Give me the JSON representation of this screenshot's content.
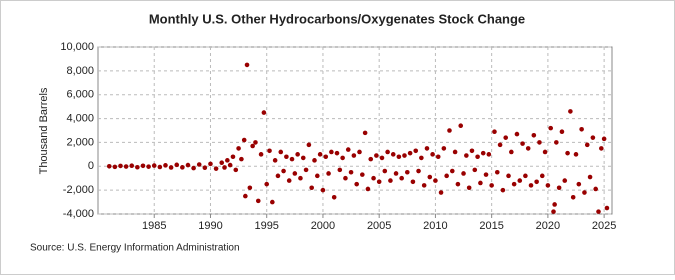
{
  "chart_data": {
    "type": "scatter",
    "title": "Monthly U.S. Other Hydrocarbons/Oxygenates Stock Change",
    "y_label": "Thousand Barrels",
    "source": "Source: U.S. Energy Information Administration",
    "color": "#990000",
    "grid": true,
    "xlim": [
      1980,
      2025.7
    ],
    "xticks": [
      1985,
      1990,
      1995,
      2000,
      2005,
      2010,
      2015,
      2020,
      2025
    ],
    "ylim": [
      -4000,
      10000
    ],
    "yticks": [
      {
        "value": -4000,
        "label": "-4,000"
      },
      {
        "value": -2000,
        "label": "-2,000"
      },
      0,
      {
        "value": 2000,
        "label": "2,000"
      },
      {
        "value": 4000,
        "label": "4,000"
      },
      {
        "value": 6000,
        "label": "6,000"
      },
      {
        "value": 8000,
        "label": "8,000"
      },
      {
        "value": 10000,
        "label": "10,000"
      }
    ],
    "x": [
      1981,
      1981.5,
      1982,
      1982.5,
      1983,
      1983.5,
      1984,
      1984.5,
      1985,
      1985.5,
      1986,
      1986.5,
      1987,
      1987.5,
      1988,
      1988.5,
      1989,
      1989.5,
      1990,
      1990.5,
      1991,
      1991.25,
      1991.5,
      1991.75,
      1992,
      1992.25,
      1992.5,
      1992.75,
      1993,
      1993.1,
      1993.25,
      1993.5,
      1993.75,
      1994,
      1994.25,
      1994.5,
      1994.75,
      1995,
      1995.25,
      1995.5,
      1995.75,
      1996,
      1996.25,
      1996.5,
      1996.75,
      1997,
      1997.25,
      1997.5,
      1997.75,
      1998,
      1998.25,
      1998.5,
      1998.75,
      1999,
      1999.25,
      1999.5,
      1999.75,
      2000,
      2000.25,
      2000.5,
      2000.75,
      2001,
      2001.25,
      2001.5,
      2001.75,
      2002,
      2002.25,
      2002.5,
      2002.75,
      2003,
      2003.25,
      2003.5,
      2003.75,
      2004,
      2004.25,
      2004.5,
      2004.75,
      2005,
      2005.25,
      2005.5,
      2005.75,
      2006,
      2006.25,
      2006.5,
      2006.75,
      2007,
      2007.25,
      2007.5,
      2007.75,
      2008,
      2008.25,
      2008.5,
      2008.75,
      2009,
      2009.25,
      2009.5,
      2009.75,
      2010,
      2010.25,
      2010.5,
      2010.75,
      2011,
      2011.25,
      2011.5,
      2011.75,
      2012,
      2012.25,
      2012.5,
      2012.75,
      2013,
      2013.25,
      2013.5,
      2013.75,
      2014,
      2014.25,
      2014.5,
      2014.75,
      2015,
      2015.25,
      2015.5,
      2015.75,
      2016,
      2016.25,
      2016.5,
      2016.75,
      2017,
      2017.25,
      2017.5,
      2017.75,
      2018,
      2018.25,
      2018.5,
      2018.75,
      2019,
      2019.25,
      2019.5,
      2019.75,
      2020,
      2020.25,
      2020.5,
      2020.6,
      2020.75,
      2021,
      2021.25,
      2021.5,
      2021.75,
      2022,
      2022.25,
      2022.5,
      2022.75,
      2023,
      2023.25,
      2023.5,
      2023.75,
      2024,
      2024.25,
      2024.5,
      2024.75,
      2025,
      2025.25
    ],
    "values": [
      0,
      -50,
      30,
      -20,
      50,
      -80,
      40,
      -30,
      60,
      -60,
      80,
      -100,
      120,
      -90,
      100,
      -150,
      150,
      -120,
      200,
      -200,
      300,
      -100,
      500,
      100,
      800,
      -300,
      1500,
      600,
      2200,
      -2500,
      8500,
      -1800,
      1700,
      2000,
      -2900,
      1000,
      4500,
      -1500,
      1300,
      -3000,
      500,
      -800,
      1200,
      -400,
      800,
      -1200,
      600,
      -600,
      1000,
      -1000,
      700,
      -300,
      1800,
      -1800,
      500,
      -800,
      1000,
      -2000,
      800,
      -600,
      1200,
      -2600,
      1100,
      -300,
      700,
      -1000,
      1400,
      -500,
      900,
      -1500,
      1200,
      -700,
      2800,
      -1900,
      600,
      -1000,
      900,
      -1300,
      700,
      -400,
      1200,
      -1200,
      1000,
      -600,
      800,
      -1000,
      900,
      -500,
      1100,
      -1300,
      1300,
      -400,
      700,
      -1600,
      1500,
      -900,
      1000,
      -1200,
      800,
      -2200,
      1500,
      -800,
      3000,
      -400,
      1200,
      -1500,
      3400,
      -600,
      900,
      -1800,
      1300,
      -300,
      800,
      -1400,
      1100,
      -700,
      1000,
      -1600,
      2900,
      -500,
      1800,
      -2000,
      2400,
      -800,
      1200,
      -1500,
      2700,
      -1200,
      1900,
      -800,
      1500,
      -1600,
      2600,
      -1300,
      2000,
      -800,
      1200,
      -1600,
      3200,
      -3800,
      -3200,
      2000,
      -1800,
      2900,
      -1200,
      1100,
      4600,
      -2600,
      1000,
      -1500,
      3100,
      -2200,
      1800,
      -900,
      2400,
      -1900,
      -3800,
      1500,
      2300,
      -3500
    ]
  }
}
